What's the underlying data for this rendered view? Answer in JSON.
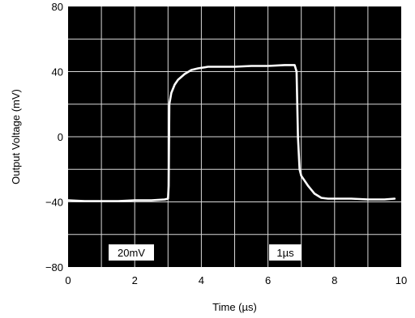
{
  "chart_data": {
    "type": "line",
    "title": "",
    "xlabel": "Time (µs)",
    "ylabel": "Output Voltage (mV)",
    "xlim": [
      0,
      10
    ],
    "ylim": [
      -80,
      80
    ],
    "x_ticks": [
      "0",
      "2",
      "4",
      "6",
      "8",
      "10"
    ],
    "y_ticks": [
      "80",
      "40",
      "0",
      "−40",
      "−80"
    ],
    "grid": true,
    "background": "#000000",
    "grid_color": "#d9d9d9",
    "trace_color": "#ffffff",
    "scale_labels": {
      "vertical": "20mV",
      "horizontal": "1µs"
    },
    "series": [
      {
        "x": [
          0.0,
          0.5,
          1.0,
          1.5,
          2.0,
          2.5,
          2.9,
          3.0,
          3.02,
          3.04,
          3.1,
          3.2,
          3.3,
          3.5,
          3.7,
          3.9,
          4.2,
          4.5,
          5.0,
          5.5,
          6.0,
          6.5,
          6.8,
          6.86,
          6.9,
          6.95,
          7.0,
          7.1,
          7.2,
          7.4,
          7.6,
          7.8,
          8.0,
          8.5,
          9.0,
          9.5,
          9.8
        ],
        "y": [
          -39,
          -39.5,
          -39.5,
          -39.5,
          -39,
          -39,
          -38.5,
          -38,
          -30,
          20,
          27,
          32,
          35,
          38.5,
          41,
          42,
          43,
          43,
          43,
          43.5,
          43.5,
          44,
          44,
          40,
          0,
          -20,
          -24,
          -27,
          -30,
          -35,
          -37.5,
          -38,
          -38,
          -38,
          -38.5,
          -38.5,
          -38
        ]
      }
    ]
  }
}
